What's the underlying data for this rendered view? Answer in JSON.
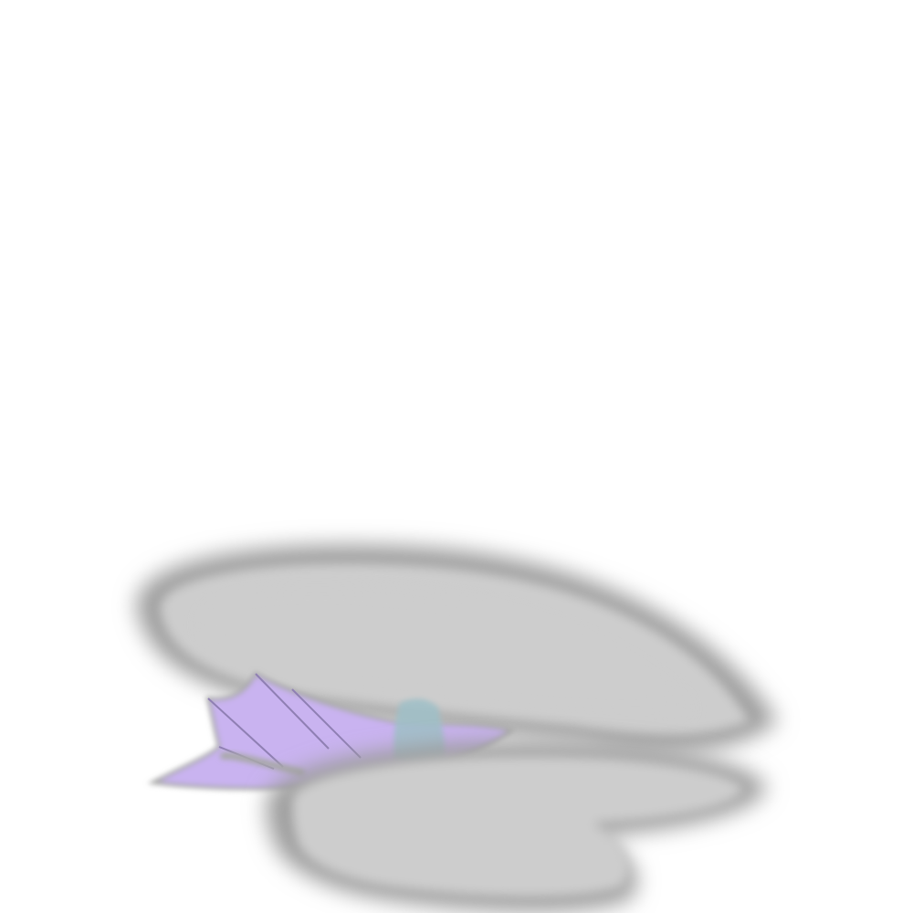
{
  "scene": {
    "subject": "dragon-in-clouds-illustration",
    "colors": {
      "background": "#ffffff",
      "cloud_fill": "#cdcdcd",
      "cloud_edge": "#9c9c9c",
      "wing_fill": "#c9b3f0",
      "wing_outline": "#a8a8a8",
      "wing_rib": "#8f7fb3",
      "body_tint": "#9fc0c8"
    }
  }
}
